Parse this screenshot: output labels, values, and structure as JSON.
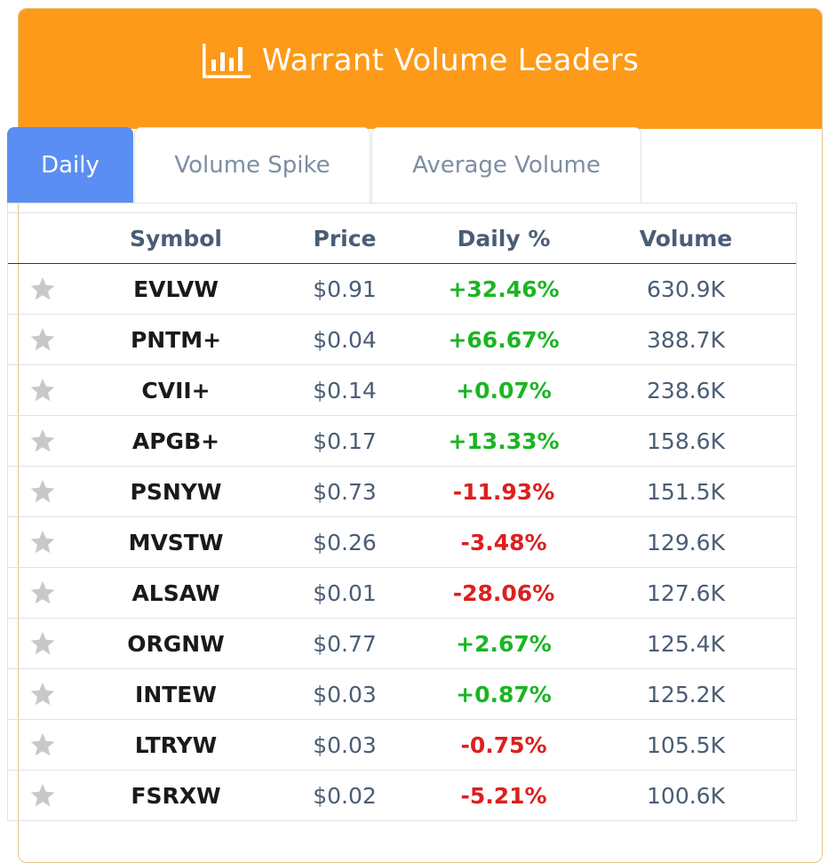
{
  "header": {
    "title": "Warrant Volume Leaders",
    "icon": "bar-chart-icon",
    "background": "#fd9a19"
  },
  "tabs": [
    {
      "label": "Daily",
      "active": true
    },
    {
      "label": "Volume Spike",
      "active": false
    },
    {
      "label": "Average Volume",
      "active": false
    }
  ],
  "table": {
    "columns": [
      "",
      "Symbol",
      "Price",
      "Daily %",
      "Volume"
    ],
    "rows": [
      {
        "symbol": "EVLVW",
        "price": "$0.91",
        "daily": "+32.46%",
        "volume": "630.9K",
        "dir": "pos"
      },
      {
        "symbol": "PNTM+",
        "price": "$0.04",
        "daily": "+66.67%",
        "volume": "388.7K",
        "dir": "pos"
      },
      {
        "symbol": "CVII+",
        "price": "$0.14",
        "daily": "+0.07%",
        "volume": "238.6K",
        "dir": "pos"
      },
      {
        "symbol": "APGB+",
        "price": "$0.17",
        "daily": "+13.33%",
        "volume": "158.6K",
        "dir": "pos"
      },
      {
        "symbol": "PSNYW",
        "price": "$0.73",
        "daily": "-11.93%",
        "volume": "151.5K",
        "dir": "neg"
      },
      {
        "symbol": "MVSTW",
        "price": "$0.26",
        "daily": "-3.48%",
        "volume": "129.6K",
        "dir": "neg"
      },
      {
        "symbol": "ALSAW",
        "price": "$0.01",
        "daily": "-28.06%",
        "volume": "127.6K",
        "dir": "neg"
      },
      {
        "symbol": "ORGNW",
        "price": "$0.77",
        "daily": "+2.67%",
        "volume": "125.4K",
        "dir": "pos"
      },
      {
        "symbol": "INTEW",
        "price": "$0.03",
        "daily": "+0.87%",
        "volume": "125.2K",
        "dir": "pos"
      },
      {
        "symbol": "LTRYW",
        "price": "$0.03",
        "daily": "-0.75%",
        "volume": "105.5K",
        "dir": "neg"
      },
      {
        "symbol": "FSRXW",
        "price": "$0.02",
        "daily": "-5.21%",
        "volume": "100.6K",
        "dir": "neg"
      }
    ]
  },
  "colors": {
    "positive": "#1bb523",
    "negative": "#dc1f1f",
    "active_tab": "#5b8ef2",
    "star": "#c8c8c8"
  }
}
